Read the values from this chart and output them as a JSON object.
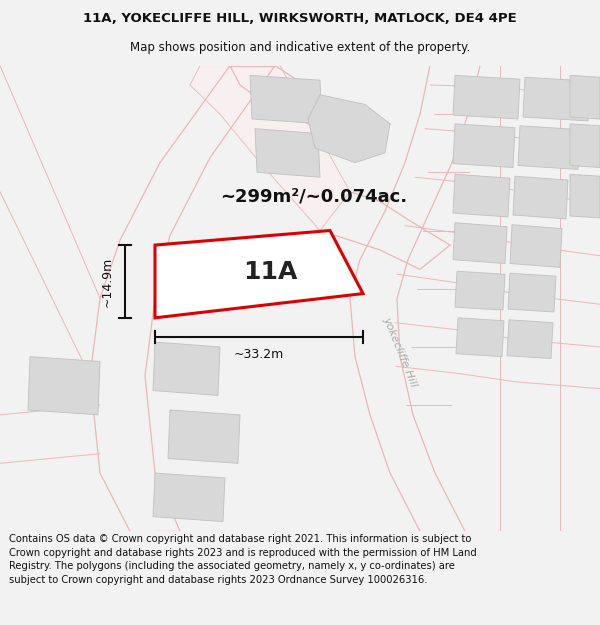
{
  "title_line1": "11A, YOKECLIFFE HILL, WIRKSWORTH, MATLOCK, DE4 4PE",
  "title_line2": "Map shows position and indicative extent of the property.",
  "property_label": "11A",
  "area_label": "~299m²/~0.074ac.",
  "width_label": "~33.2m",
  "height_label": "~14.9m",
  "footer_text": "Contains OS data © Crown copyright and database right 2021. This information is subject to Crown copyright and database rights 2023 and is reproduced with the permission of HM Land Registry. The polygons (including the associated geometry, namely x, y co-ordinates) are subject to Crown copyright and database rights 2023 Ordnance Survey 100026316.",
  "bg_color": "#f2f2f2",
  "map_bg": "#ffffff",
  "road_line_color": "#e8b8b8",
  "road_fill_color": "#f8f0f0",
  "building_fill": "#d8d8d8",
  "building_edge": "#c0c0c0",
  "property_edge": "#dd0000",
  "property_fill": "#ffffff",
  "dim_color": "#111111",
  "street_label_color": "#aaaaaa",
  "title_fontsize": 9.5,
  "subtitle_fontsize": 8.5,
  "property_label_fontsize": 18,
  "area_fontsize": 13,
  "dim_fontsize": 9,
  "footer_fontsize": 7.2,
  "street_label": "yokecliffe Hill"
}
